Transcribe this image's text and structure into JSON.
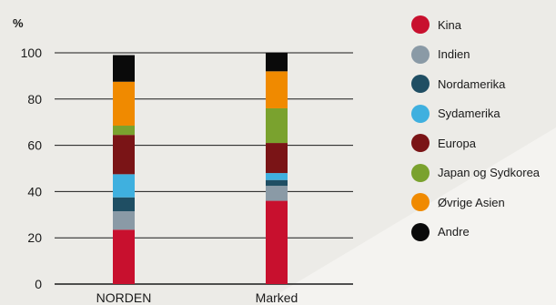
{
  "chart_data": {
    "type": "bar",
    "stacked": true,
    "ylabel": "%",
    "ylim": [
      0,
      100
    ],
    "yticks": [
      0,
      20,
      40,
      60,
      80,
      100
    ],
    "grid": true,
    "legend_position": "right",
    "categories": [
      "NORDEN",
      "Marked"
    ],
    "series": [
      {
        "name": "Kina",
        "color": "#c8102e",
        "values": [
          23.5,
          36
        ]
      },
      {
        "name": "Indien",
        "color": "#8a9aa6",
        "values": [
          8,
          6.5
        ]
      },
      {
        "name": "Nordamerika",
        "color": "#1f4e63",
        "values": [
          6,
          2.5
        ]
      },
      {
        "name": "Sydamerika",
        "color": "#3fb0df",
        "values": [
          10,
          3
        ]
      },
      {
        "name": "Europa",
        "color": "#7a1416",
        "values": [
          17,
          13
        ]
      },
      {
        "name": "Japan og Sydkorea",
        "color": "#7aa22e",
        "values": [
          4,
          15
        ]
      },
      {
        "name": "Øvrige Asien",
        "color": "#f08a00",
        "values": [
          19,
          16
        ]
      },
      {
        "name": "Andre",
        "color": "#0a0a0a",
        "values": [
          11.5,
          8
        ]
      }
    ]
  }
}
